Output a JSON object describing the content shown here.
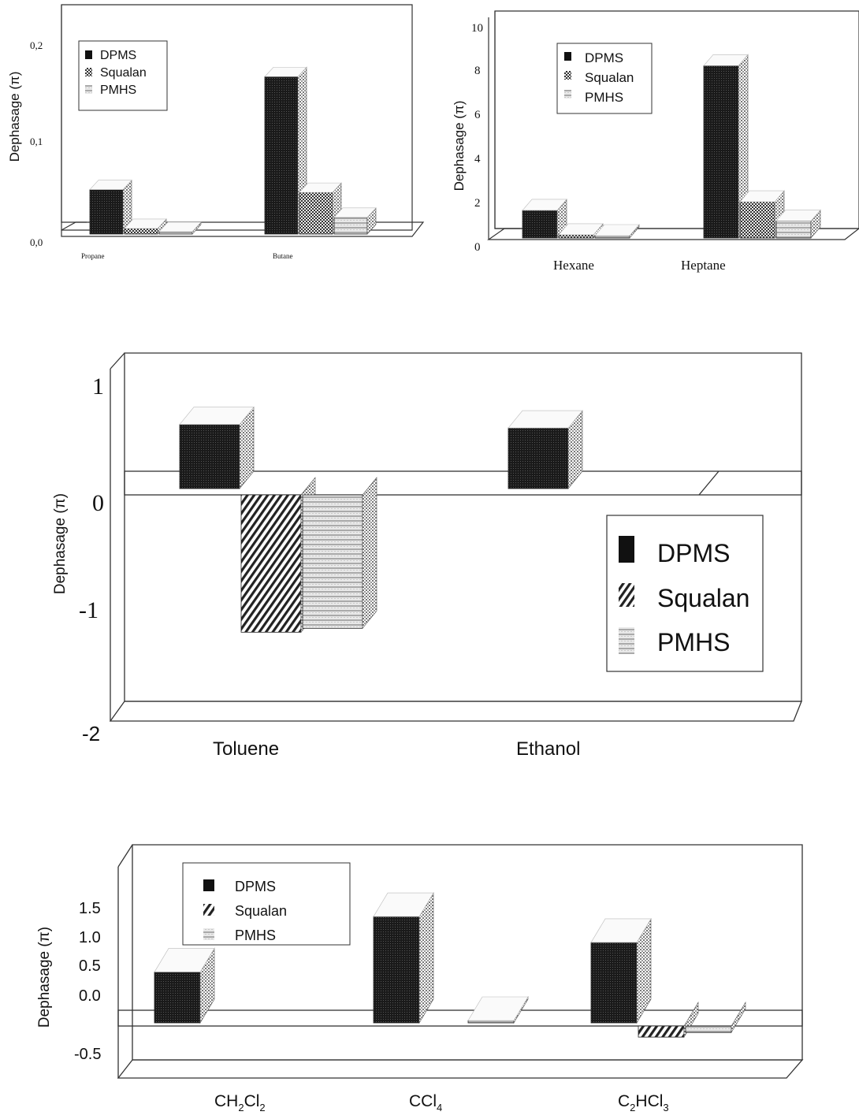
{
  "charts": [
    {
      "chart_data": {
        "type": "bar",
        "ylabel": "Dephasage (π)",
        "categories": [
          "Propane",
          "Butane"
        ],
        "series": [
          {
            "name": "DPMS",
            "values": [
              0.048,
              0.17
            ]
          },
          {
            "name": "Squalan",
            "values": [
              0.006,
              0.045
            ]
          },
          {
            "name": "PMHS",
            "values": [
              0.002,
              0.018
            ]
          }
        ],
        "yticks": [
          "0,0",
          "0,1",
          "0,2"
        ],
        "ylim": [
          0,
          0.2
        ],
        "legend": "top-left"
      }
    },
    {
      "chart_data": {
        "type": "bar",
        "ylabel": "Dephasage (π)",
        "categories": [
          "Hexane",
          "Heptane"
        ],
        "series": [
          {
            "name": "DPMS",
            "values": [
              1.3,
              8.1
            ]
          },
          {
            "name": "Squalan",
            "values": [
              0.15,
              1.7
            ]
          },
          {
            "name": "PMHS",
            "values": [
              0.03,
              0.8
            ]
          }
        ],
        "yticks": [
          "0",
          "2",
          "4",
          "6",
          "8",
          "10"
        ],
        "ylim": [
          0,
          10
        ],
        "legend": "top-left"
      }
    },
    {
      "chart_data": {
        "type": "bar",
        "ylabel": "Dephasage (π)",
        "categories": [
          "Toluene",
          "Ethanol"
        ],
        "series": [
          {
            "name": "DPMS",
            "values": [
              0.55,
              0.52
            ]
          },
          {
            "name": "Squalan",
            "values": [
              -1.05,
              0
            ]
          },
          {
            "name": "PMHS",
            "values": [
              -1.02,
              0
            ]
          }
        ],
        "yticks": [
          "-2",
          "-1",
          "0",
          "1"
        ],
        "ylim": [
          -2,
          1
        ],
        "legend": "right"
      }
    },
    {
      "chart_data": {
        "type": "bar",
        "ylabel": "Dephasage (π)",
        "categories": [
          "CH2Cl2",
          "CCl4",
          "C2HCl3"
        ],
        "category_labels": [
          {
            "a": "CH",
            "s1": "2",
            "b": "Cl",
            "s2": "2",
            "c": ""
          },
          {
            "a": "CCl",
            "s1": "4",
            "b": "",
            "s2": "",
            "c": ""
          },
          {
            "a": "C",
            "s1": "2",
            "b": "HCl",
            "s2": "3",
            "c": ""
          }
        ],
        "series": [
          {
            "name": "DPMS",
            "values": [
              0.55,
              1.15,
              0.87
            ]
          },
          {
            "name": "Squalan",
            "values": [
              0,
              0,
              -0.12
            ]
          },
          {
            "name": "PMHS",
            "values": [
              0,
              0.02,
              -0.07
            ]
          }
        ],
        "yticks": [
          "-0.5",
          "0.0",
          "0.5",
          "1.0",
          "1.5"
        ],
        "ylim": [
          -0.5,
          1.5
        ],
        "legend": "top-left"
      }
    }
  ],
  "colors": {
    "dpms": "#111111",
    "squalan": "#444444",
    "pmhs": "#bdbdbd"
  }
}
